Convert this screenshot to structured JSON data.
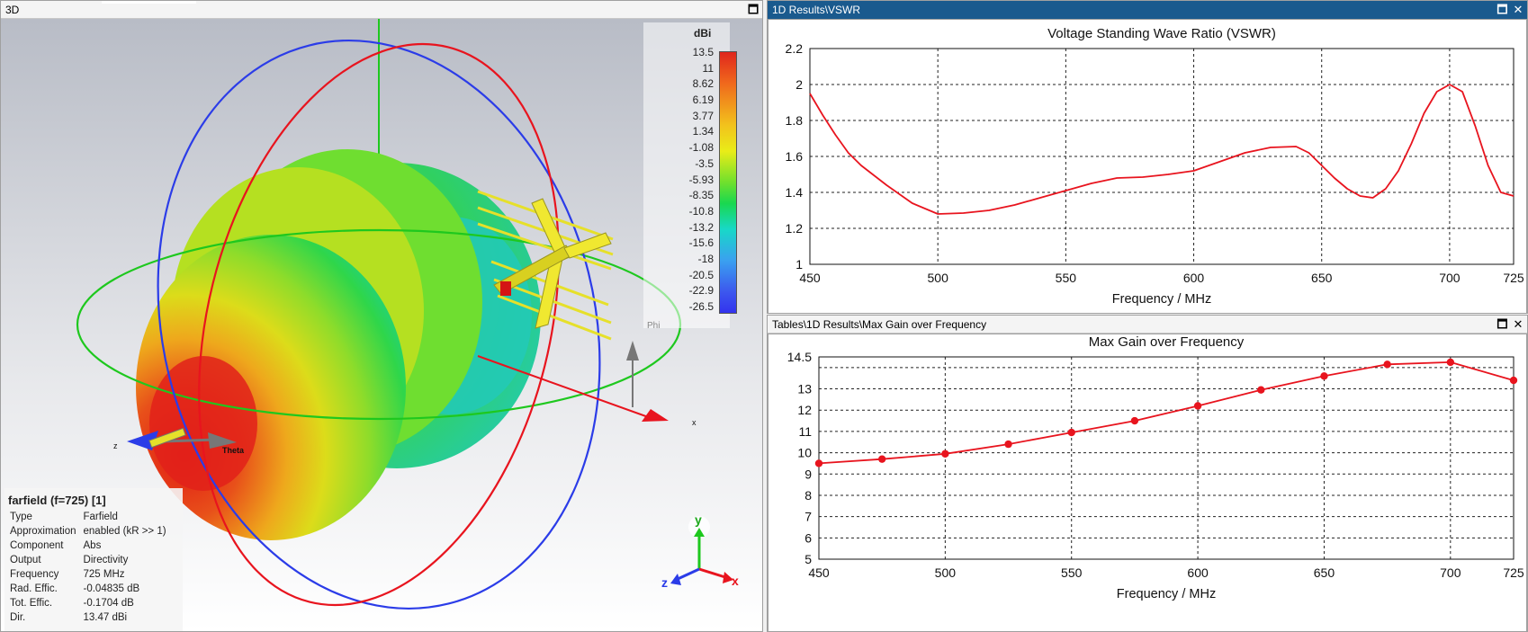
{
  "view3d": {
    "title": "3D",
    "legend": {
      "unit": "dBi",
      "ticks": [
        "13.5",
        "11",
        "8.62",
        "6.19",
        "3.77",
        "1.34",
        "-1.08",
        "-3.5",
        "-5.93",
        "-8.35",
        "-10.8",
        "-13.2",
        "-15.6",
        "-18",
        "-20.5",
        "-22.9",
        "-26.5"
      ],
      "axis_label": "Phi"
    },
    "axis_labels": {
      "z": "z",
      "theta": "Theta",
      "x": "x"
    },
    "triad": {
      "x": "x",
      "y": "y",
      "z": "z"
    },
    "info": {
      "title": "farfield (f=725) [1]",
      "rows": [
        {
          "label": "Type",
          "value": "Farfield"
        },
        {
          "label": "Approximation",
          "value": "enabled (kR >> 1)"
        },
        {
          "label": "Component",
          "value": "Abs"
        },
        {
          "label": "Output",
          "value": "Directivity"
        },
        {
          "label": "Frequency",
          "value": "725 MHz"
        },
        {
          "label": "Rad. Effic.",
          "value": "-0.04835 dB"
        },
        {
          "label": "Tot. Effic.",
          "value": "-0.1704 dB"
        },
        {
          "label": "Dir.",
          "value": "13.47 dBi"
        }
      ]
    },
    "colors": {
      "red_ring": "#e8141e",
      "blue_ring": "#2b3ce8",
      "green_ring": "#1ec81e"
    }
  },
  "vswr_window": {
    "title": "1D Results\\VSWR",
    "buttons": {
      "restore": "🗖",
      "close": "✕"
    }
  },
  "gain_window": {
    "title": "Tables\\1D Results\\Max Gain over Frequency",
    "buttons": {
      "restore": "🗖",
      "close": "✕"
    }
  },
  "chart_data": [
    {
      "type": "line",
      "title": "Voltage Standing Wave Ratio (VSWR)",
      "xlabel": "Frequency / MHz",
      "ylabel": "",
      "xlim": [
        450,
        725
      ],
      "ylim": [
        1,
        2.2
      ],
      "xticks": [
        450,
        500,
        550,
        600,
        650,
        700,
        725
      ],
      "yticks": [
        1,
        1.2,
        1.4,
        1.6,
        1.8,
        2,
        2.2
      ],
      "grid": true,
      "color": "#e8141e",
      "series": [
        {
          "x": [
            450,
            455,
            460,
            465,
            470,
            480,
            490,
            500,
            510,
            520,
            530,
            540,
            550,
            560,
            570,
            580,
            590,
            600,
            610,
            620,
            630,
            640,
            645,
            650,
            655,
            660,
            665,
            670,
            675,
            680,
            685,
            690,
            695,
            700,
            705,
            710,
            715,
            720,
            725
          ],
          "y": [
            1.95,
            1.83,
            1.72,
            1.62,
            1.55,
            1.44,
            1.34,
            1.28,
            1.285,
            1.3,
            1.33,
            1.37,
            1.41,
            1.45,
            1.48,
            1.485,
            1.5,
            1.52,
            1.57,
            1.62,
            1.65,
            1.655,
            1.62,
            1.55,
            1.48,
            1.42,
            1.38,
            1.37,
            1.42,
            1.52,
            1.67,
            1.84,
            1.96,
            2.0,
            1.96,
            1.77,
            1.55,
            1.4,
            1.38
          ]
        }
      ]
    },
    {
      "type": "line",
      "title": "Max Gain over Frequency",
      "xlabel": "Frequency / MHz",
      "ylabel": "",
      "xlim": [
        450,
        725
      ],
      "ylim": [
        5,
        14.5
      ],
      "xticks": [
        450,
        500,
        550,
        600,
        650,
        700,
        725
      ],
      "yticks": [
        5,
        6,
        7,
        8,
        9,
        10,
        11,
        12,
        13,
        14.5
      ],
      "grid": true,
      "color": "#e8141e",
      "markers": true,
      "series": [
        {
          "x": [
            450,
            475,
            500,
            525,
            550,
            575,
            600,
            625,
            650,
            675,
            700,
            725
          ],
          "y": [
            9.5,
            9.7,
            9.95,
            10.4,
            10.95,
            11.5,
            12.2,
            12.95,
            13.6,
            14.15,
            14.25,
            13.4
          ]
        }
      ]
    }
  ]
}
